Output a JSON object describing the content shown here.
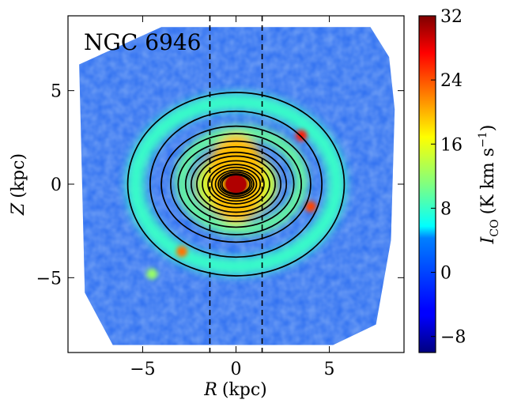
{
  "chart_data": {
    "type": "heatmap",
    "title": "NGC 6946",
    "xlabel_var": "R",
    "xlabel_unit": "(kpc)",
    "ylabel_var": "Z",
    "ylabel_unit": "(kpc)",
    "xlim": [
      -9,
      9
    ],
    "ylim": [
      -9,
      9
    ],
    "xticks": [
      -5,
      0,
      5
    ],
    "xtick_labels": [
      "−5",
      "0",
      "5"
    ],
    "yticks": [
      5,
      0,
      -5
    ],
    "ytick_labels": [
      "5",
      "0",
      "−5"
    ],
    "vertical_dashed_lines_kpc": [
      -1.4,
      1.4
    ],
    "contour_semi_axes_kpc": [
      [
        5.8,
        4.9
      ],
      [
        4.6,
        3.9
      ],
      [
        4.0,
        3.1
      ],
      [
        3.5,
        2.7
      ],
      [
        3.1,
        2.3
      ],
      [
        2.7,
        2.0
      ],
      [
        2.4,
        1.7
      ],
      [
        2.1,
        1.5
      ],
      [
        1.8,
        1.25
      ],
      [
        1.5,
        1.05
      ],
      [
        1.3,
        0.9
      ],
      [
        1.1,
        0.75
      ],
      [
        0.95,
        0.65
      ],
      [
        0.85,
        0.55
      ],
      [
        0.75,
        0.5
      ]
    ],
    "colorbar": {
      "label_var": "I",
      "label_sub": "CO",
      "label_unit": "(K km s",
      "label_exp": "−1",
      "label_close": ")",
      "range": [
        -10,
        32
      ],
      "ticks": [
        32,
        24,
        16,
        8,
        0,
        -8
      ],
      "tick_labels": [
        "32",
        "24",
        "16",
        "8",
        "0",
        "−8"
      ],
      "colormap": "jet"
    },
    "emission_features": [
      {
        "name": "center",
        "r": 0.0,
        "z": 0.0,
        "value": 32
      },
      {
        "name": "ring-knot-ne",
        "r": 3.5,
        "z": 2.6,
        "value": 26
      },
      {
        "name": "ring-knot-e",
        "r": 4.0,
        "z": -1.2,
        "value": 24
      },
      {
        "name": "ring-knot-sw",
        "r": -2.9,
        "z": -3.6,
        "value": 22
      },
      {
        "name": "ring-knot-s",
        "r": -4.5,
        "z": -4.8,
        "value": 12
      }
    ]
  }
}
